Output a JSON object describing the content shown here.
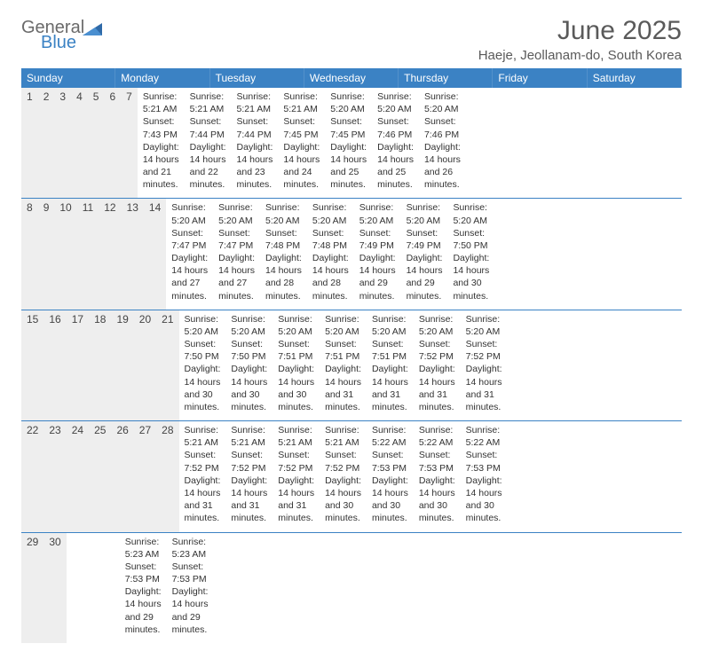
{
  "logo": {
    "general": "General",
    "blue": "Blue"
  },
  "title": "June 2025",
  "location": "Haeje, Jeollanam-do, South Korea",
  "colors": {
    "header_bg": "#3b82c4",
    "header_text": "#ffffff",
    "daynum_bg": "#eeeeee",
    "text": "#333333",
    "title_text": "#5a5a5a",
    "divider": "#3b82c4"
  },
  "day_names": [
    "Sunday",
    "Monday",
    "Tuesday",
    "Wednesday",
    "Thursday",
    "Friday",
    "Saturday"
  ],
  "weeks": [
    {
      "nums": [
        "1",
        "2",
        "3",
        "4",
        "5",
        "6",
        "7"
      ],
      "cells": [
        {
          "sunrise": "5:21 AM",
          "sunset": "7:43 PM",
          "dl1": "14 hours",
          "dl2": "and 21 minutes."
        },
        {
          "sunrise": "5:21 AM",
          "sunset": "7:44 PM",
          "dl1": "14 hours",
          "dl2": "and 22 minutes."
        },
        {
          "sunrise": "5:21 AM",
          "sunset": "7:44 PM",
          "dl1": "14 hours",
          "dl2": "and 23 minutes."
        },
        {
          "sunrise": "5:21 AM",
          "sunset": "7:45 PM",
          "dl1": "14 hours",
          "dl2": "and 24 minutes."
        },
        {
          "sunrise": "5:20 AM",
          "sunset": "7:45 PM",
          "dl1": "14 hours",
          "dl2": "and 25 minutes."
        },
        {
          "sunrise": "5:20 AM",
          "sunset": "7:46 PM",
          "dl1": "14 hours",
          "dl2": "and 25 minutes."
        },
        {
          "sunrise": "5:20 AM",
          "sunset": "7:46 PM",
          "dl1": "14 hours",
          "dl2": "and 26 minutes."
        }
      ]
    },
    {
      "nums": [
        "8",
        "9",
        "10",
        "11",
        "12",
        "13",
        "14"
      ],
      "cells": [
        {
          "sunrise": "5:20 AM",
          "sunset": "7:47 PM",
          "dl1": "14 hours",
          "dl2": "and 27 minutes."
        },
        {
          "sunrise": "5:20 AM",
          "sunset": "7:47 PM",
          "dl1": "14 hours",
          "dl2": "and 27 minutes."
        },
        {
          "sunrise": "5:20 AM",
          "sunset": "7:48 PM",
          "dl1": "14 hours",
          "dl2": "and 28 minutes."
        },
        {
          "sunrise": "5:20 AM",
          "sunset": "7:48 PM",
          "dl1": "14 hours",
          "dl2": "and 28 minutes."
        },
        {
          "sunrise": "5:20 AM",
          "sunset": "7:49 PM",
          "dl1": "14 hours",
          "dl2": "and 29 minutes."
        },
        {
          "sunrise": "5:20 AM",
          "sunset": "7:49 PM",
          "dl1": "14 hours",
          "dl2": "and 29 minutes."
        },
        {
          "sunrise": "5:20 AM",
          "sunset": "7:50 PM",
          "dl1": "14 hours",
          "dl2": "and 30 minutes."
        }
      ]
    },
    {
      "nums": [
        "15",
        "16",
        "17",
        "18",
        "19",
        "20",
        "21"
      ],
      "cells": [
        {
          "sunrise": "5:20 AM",
          "sunset": "7:50 PM",
          "dl1": "14 hours",
          "dl2": "and 30 minutes."
        },
        {
          "sunrise": "5:20 AM",
          "sunset": "7:50 PM",
          "dl1": "14 hours",
          "dl2": "and 30 minutes."
        },
        {
          "sunrise": "5:20 AM",
          "sunset": "7:51 PM",
          "dl1": "14 hours",
          "dl2": "and 30 minutes."
        },
        {
          "sunrise": "5:20 AM",
          "sunset": "7:51 PM",
          "dl1": "14 hours",
          "dl2": "and 31 minutes."
        },
        {
          "sunrise": "5:20 AM",
          "sunset": "7:51 PM",
          "dl1": "14 hours",
          "dl2": "and 31 minutes."
        },
        {
          "sunrise": "5:20 AM",
          "sunset": "7:52 PM",
          "dl1": "14 hours",
          "dl2": "and 31 minutes."
        },
        {
          "sunrise": "5:20 AM",
          "sunset": "7:52 PM",
          "dl1": "14 hours",
          "dl2": "and 31 minutes."
        }
      ]
    },
    {
      "nums": [
        "22",
        "23",
        "24",
        "25",
        "26",
        "27",
        "28"
      ],
      "cells": [
        {
          "sunrise": "5:21 AM",
          "sunset": "7:52 PM",
          "dl1": "14 hours",
          "dl2": "and 31 minutes."
        },
        {
          "sunrise": "5:21 AM",
          "sunset": "7:52 PM",
          "dl1": "14 hours",
          "dl2": "and 31 minutes."
        },
        {
          "sunrise": "5:21 AM",
          "sunset": "7:52 PM",
          "dl1": "14 hours",
          "dl2": "and 31 minutes."
        },
        {
          "sunrise": "5:21 AM",
          "sunset": "7:52 PM",
          "dl1": "14 hours",
          "dl2": "and 30 minutes."
        },
        {
          "sunrise": "5:22 AM",
          "sunset": "7:53 PM",
          "dl1": "14 hours",
          "dl2": "and 30 minutes."
        },
        {
          "sunrise": "5:22 AM",
          "sunset": "7:53 PM",
          "dl1": "14 hours",
          "dl2": "and 30 minutes."
        },
        {
          "sunrise": "5:22 AM",
          "sunset": "7:53 PM",
          "dl1": "14 hours",
          "dl2": "and 30 minutes."
        }
      ]
    },
    {
      "nums": [
        "29",
        "30",
        "",
        "",
        "",
        "",
        ""
      ],
      "cells": [
        {
          "sunrise": "5:23 AM",
          "sunset": "7:53 PM",
          "dl1": "14 hours",
          "dl2": "and 29 minutes."
        },
        {
          "sunrise": "5:23 AM",
          "sunset": "7:53 PM",
          "dl1": "14 hours",
          "dl2": "and 29 minutes."
        },
        null,
        null,
        null,
        null,
        null
      ]
    }
  ],
  "labels": {
    "sunrise": "Sunrise: ",
    "sunset": "Sunset: ",
    "daylight": "Daylight: "
  }
}
